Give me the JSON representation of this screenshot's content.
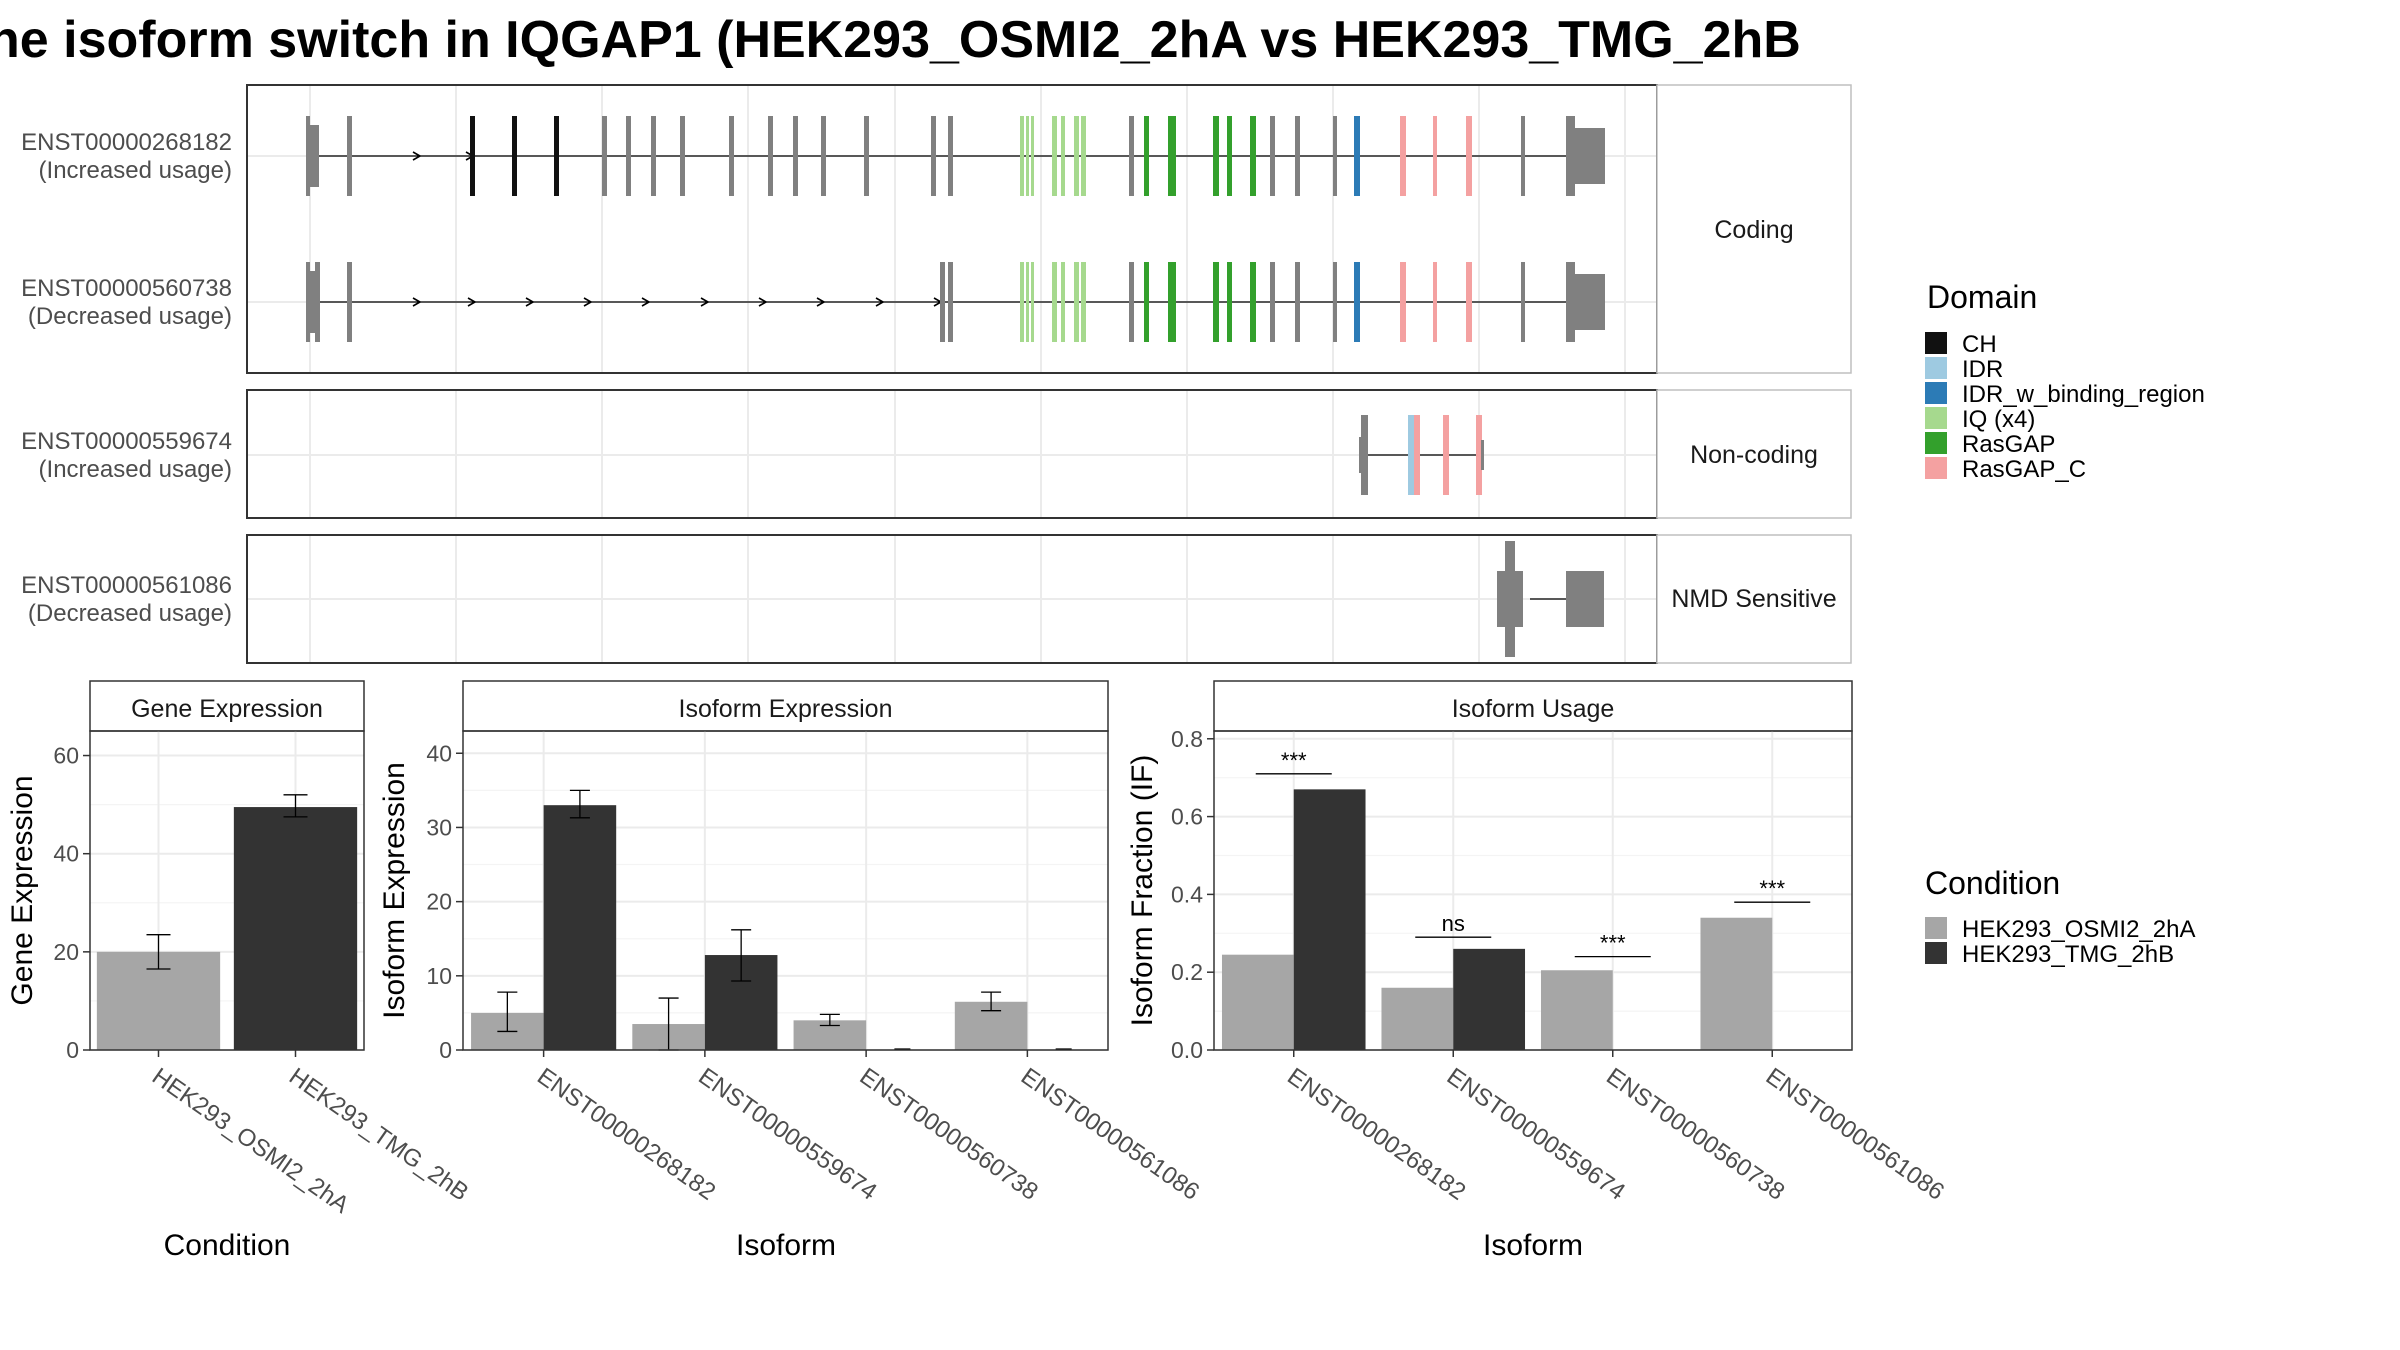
{
  "title": "ne isoform switch in IQGAP1 (HEK293_OSMI2_2hA vs HEK293_TMG_2hB",
  "colors": {
    "domains": {
      "CH": "#111111",
      "IDR": "#9ecae1",
      "IDR_w_binding_region": "#2c7bb6",
      "IQ (x4)": "#a6d98e",
      "RasGAP": "#33a02c",
      "RasGAP_C": "#f4a1a1",
      "none": "#808080"
    },
    "conditions": {
      "HEK293_OSMI2_2hA": "#a6a6a6",
      "HEK293_TMG_2hB": "#333333"
    },
    "panel_border": "#333333",
    "strip_border": "#bfbfbf",
    "grid": "#ebebeb"
  },
  "structure": {
    "facets": [
      {
        "label": "Coding",
        "rows": [
          {
            "id": "ENST00000268182",
            "usage": "(Increased usage)"
          },
          {
            "id": "ENST00000560738",
            "usage": "(Decreased usage)"
          }
        ]
      },
      {
        "label": "Non-coding",
        "rows": [
          {
            "id": "ENST00000559674",
            "usage": "(Increased usage)"
          }
        ]
      },
      {
        "label": "NMD Sensitive",
        "rows": [
          {
            "id": "ENST00000561086",
            "usage": "(Decreased usage)"
          }
        ]
      }
    ]
  },
  "legend_domain": {
    "title": "Domain",
    "items": [
      "CH",
      "IDR",
      "IDR_w_binding_region",
      "IQ (x4)",
      "RasGAP",
      "RasGAP_C"
    ]
  },
  "legend_condition": {
    "title": "Condition",
    "items": [
      "HEK293_OSMI2_2hA",
      "HEK293_TMG_2hB"
    ]
  },
  "chart_data": [
    {
      "type": "bar",
      "title": "Gene Expression",
      "xlabel": "Condition",
      "ylabel": "Gene Expression",
      "ylim": [
        0,
        65
      ],
      "yticks": [
        0,
        20,
        40,
        60
      ],
      "categories": [
        "HEK293_OSMI2_2hA",
        "HEK293_TMG_2hB"
      ],
      "values": [
        20,
        49.5
      ],
      "error": [
        [
          16.5,
          23.5
        ],
        [
          47.5,
          52
        ]
      ]
    },
    {
      "type": "bar",
      "title": "Isoform Expression",
      "xlabel": "Isoform",
      "ylabel": "Isoform Expression",
      "ylim": [
        0,
        43
      ],
      "yticks": [
        0,
        10,
        20,
        30,
        40
      ],
      "categories": [
        "ENST00000268182",
        "ENST00000559674",
        "ENST00000560738",
        "ENST00000561086"
      ],
      "series": [
        {
          "name": "HEK293_OSMI2_2hA",
          "values": [
            5.0,
            3.5,
            4.0,
            6.5
          ],
          "error": [
            [
              2.5,
              7.8
            ],
            [
              0.0,
              7.0
            ],
            [
              3.3,
              4.8
            ],
            [
              5.3,
              7.8
            ]
          ]
        },
        {
          "name": "HEK293_TMG_2hB",
          "values": [
            33.0,
            12.8,
            0.0,
            0.0
          ],
          "error": [
            [
              31.3,
              35.0
            ],
            [
              9.3,
              16.2
            ],
            [
              0.0,
              0.0
            ],
            [
              0.0,
              0.0
            ]
          ]
        }
      ]
    },
    {
      "type": "bar",
      "title": "Isoform Usage",
      "xlabel": "Isoform",
      "ylabel": "Isoform Fraction (IF)",
      "ylim": [
        0,
        0.82
      ],
      "yticks": [
        0.0,
        0.2,
        0.4,
        0.6,
        0.8
      ],
      "categories": [
        "ENST00000268182",
        "ENST00000559674",
        "ENST00000560738",
        "ENST00000561086"
      ],
      "series": [
        {
          "name": "HEK293_OSMI2_2hA",
          "values": [
            0.245,
            0.16,
            0.205,
            0.34
          ]
        },
        {
          "name": "HEK293_TMG_2hB",
          "values": [
            0.67,
            0.26,
            0.0,
            0.0
          ]
        }
      ],
      "significance": [
        {
          "category": "ENST00000268182",
          "label": "***",
          "y": 0.71
        },
        {
          "category": "ENST00000559674",
          "label": "ns",
          "y": 0.29
        },
        {
          "category": "ENST00000560738",
          "label": "***",
          "y": 0.24
        },
        {
          "category": "ENST00000561086",
          "label": "***",
          "y": 0.38
        }
      ]
    }
  ]
}
